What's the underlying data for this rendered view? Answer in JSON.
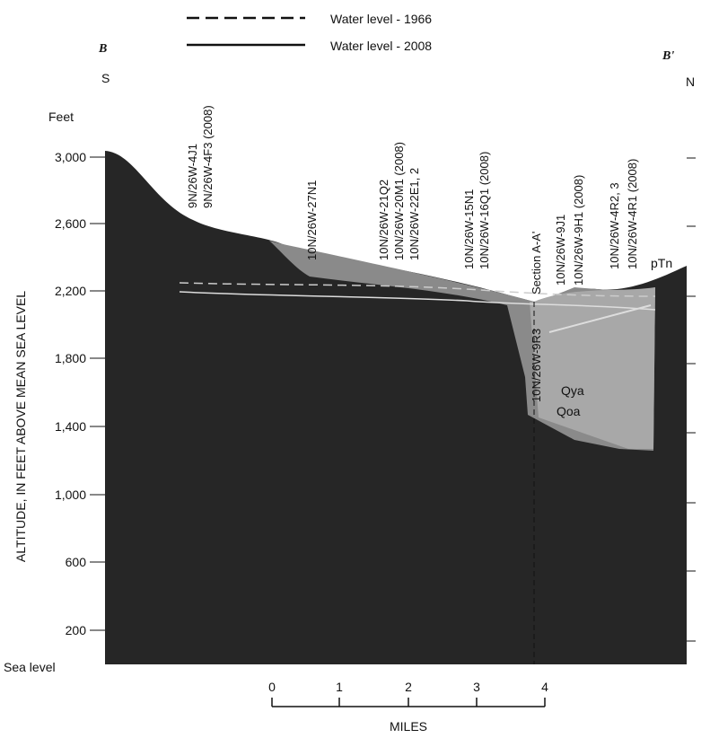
{
  "legend": [
    {
      "label": "Water level - 1966"
    },
    {
      "label": "Water level - 2008"
    }
  ],
  "section": {
    "left": "B",
    "right": "B'",
    "left_dir": "S",
    "right_dir": "N"
  },
  "y_axis": {
    "title": "ALTITUDE, IN FEET ABOVE MEAN SEA LEVEL",
    "unit": "Feet",
    "ticks": [
      "3,000",
      "2,600",
      "2,200",
      "1,800",
      "1,400",
      "1,000",
      "600",
      "200"
    ],
    "base": "Sea level"
  },
  "wells": [
    "9N/26W-4J1",
    "9N/26W-4F3 (2008)",
    "10N/26W-27N1",
    "10N/26W-21Q2",
    "10N/26W-20M1 (2008)",
    "10N/26W-22E1, 2",
    "10N/26W-15N1",
    "10N/26W-16Q1 (2008)",
    "10N/26W-9R3",
    "Section A-A'",
    "10N/26W-9J1",
    "10N/26W-9H1 (2008)",
    "10N/26W-4R2, 3",
    "10N/26W-4R1 (2008)"
  ],
  "units": [
    "pTn",
    "Qya",
    "Qoa"
  ],
  "x_axis": {
    "title": "MILES",
    "ticks": [
      "0",
      "1",
      "2",
      "3",
      "4"
    ]
  }
}
